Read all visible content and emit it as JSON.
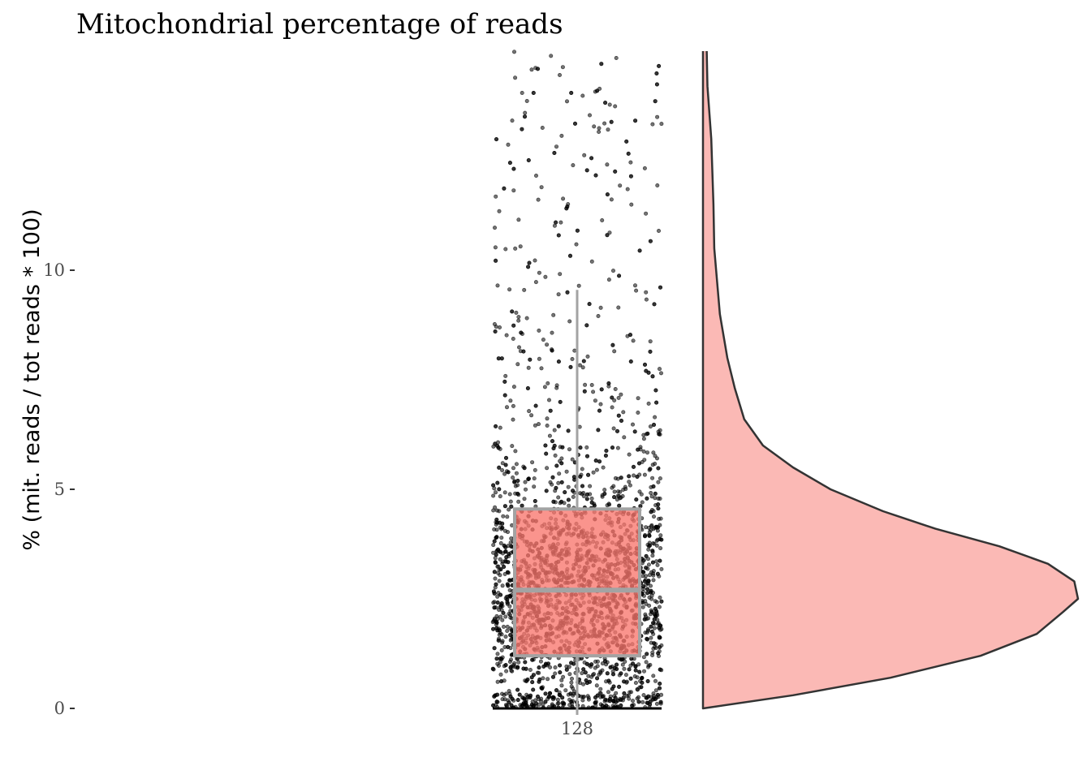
{
  "chart_data": {
    "type": "boxplot",
    "title": "Mitochondrial percentage of reads",
    "xlabel": "",
    "ylabel": "% (mit. reads / tot reads * 100)",
    "categories": [
      "128"
    ],
    "ylim": [
      0,
      15
    ],
    "yticks": [
      0,
      5,
      10
    ],
    "ytick_labels": [
      "0",
      "5",
      "10"
    ],
    "grid": false,
    "legend": "none",
    "box": {
      "category": "128",
      "q1": 1.2,
      "median": 2.7,
      "q3": 4.55,
      "whisker_low": 0,
      "whisker_high": 9.55
    },
    "points": {
      "description_count": 3000,
      "distribution": "right-skewed, dense between 0 and 5, sparse up to 15"
    },
    "density": {
      "y": [
        0,
        0.3,
        0.7,
        1.2,
        1.7,
        2.2,
        2.5,
        2.9,
        3.3,
        3.7,
        4.1,
        4.5,
        5.0,
        5.5,
        6.0,
        6.6,
        7.3,
        8.0,
        9.0,
        10.0,
        10.5,
        11.5,
        13.0,
        14.2,
        15.0
      ],
      "width": [
        0.0,
        0.24,
        0.5,
        0.74,
        0.89,
        0.96,
        1.0,
        0.99,
        0.92,
        0.79,
        0.62,
        0.48,
        0.34,
        0.24,
        0.16,
        0.11,
        0.085,
        0.065,
        0.045,
        0.035,
        0.03,
        0.028,
        0.022,
        0.012,
        0.01
      ]
    },
    "colors": {
      "box_fill": "#f8766d",
      "box_stroke": "#a3a3a3",
      "density_fill": "#fbb9b5",
      "density_stroke": "#333333",
      "point": "#000000"
    }
  }
}
